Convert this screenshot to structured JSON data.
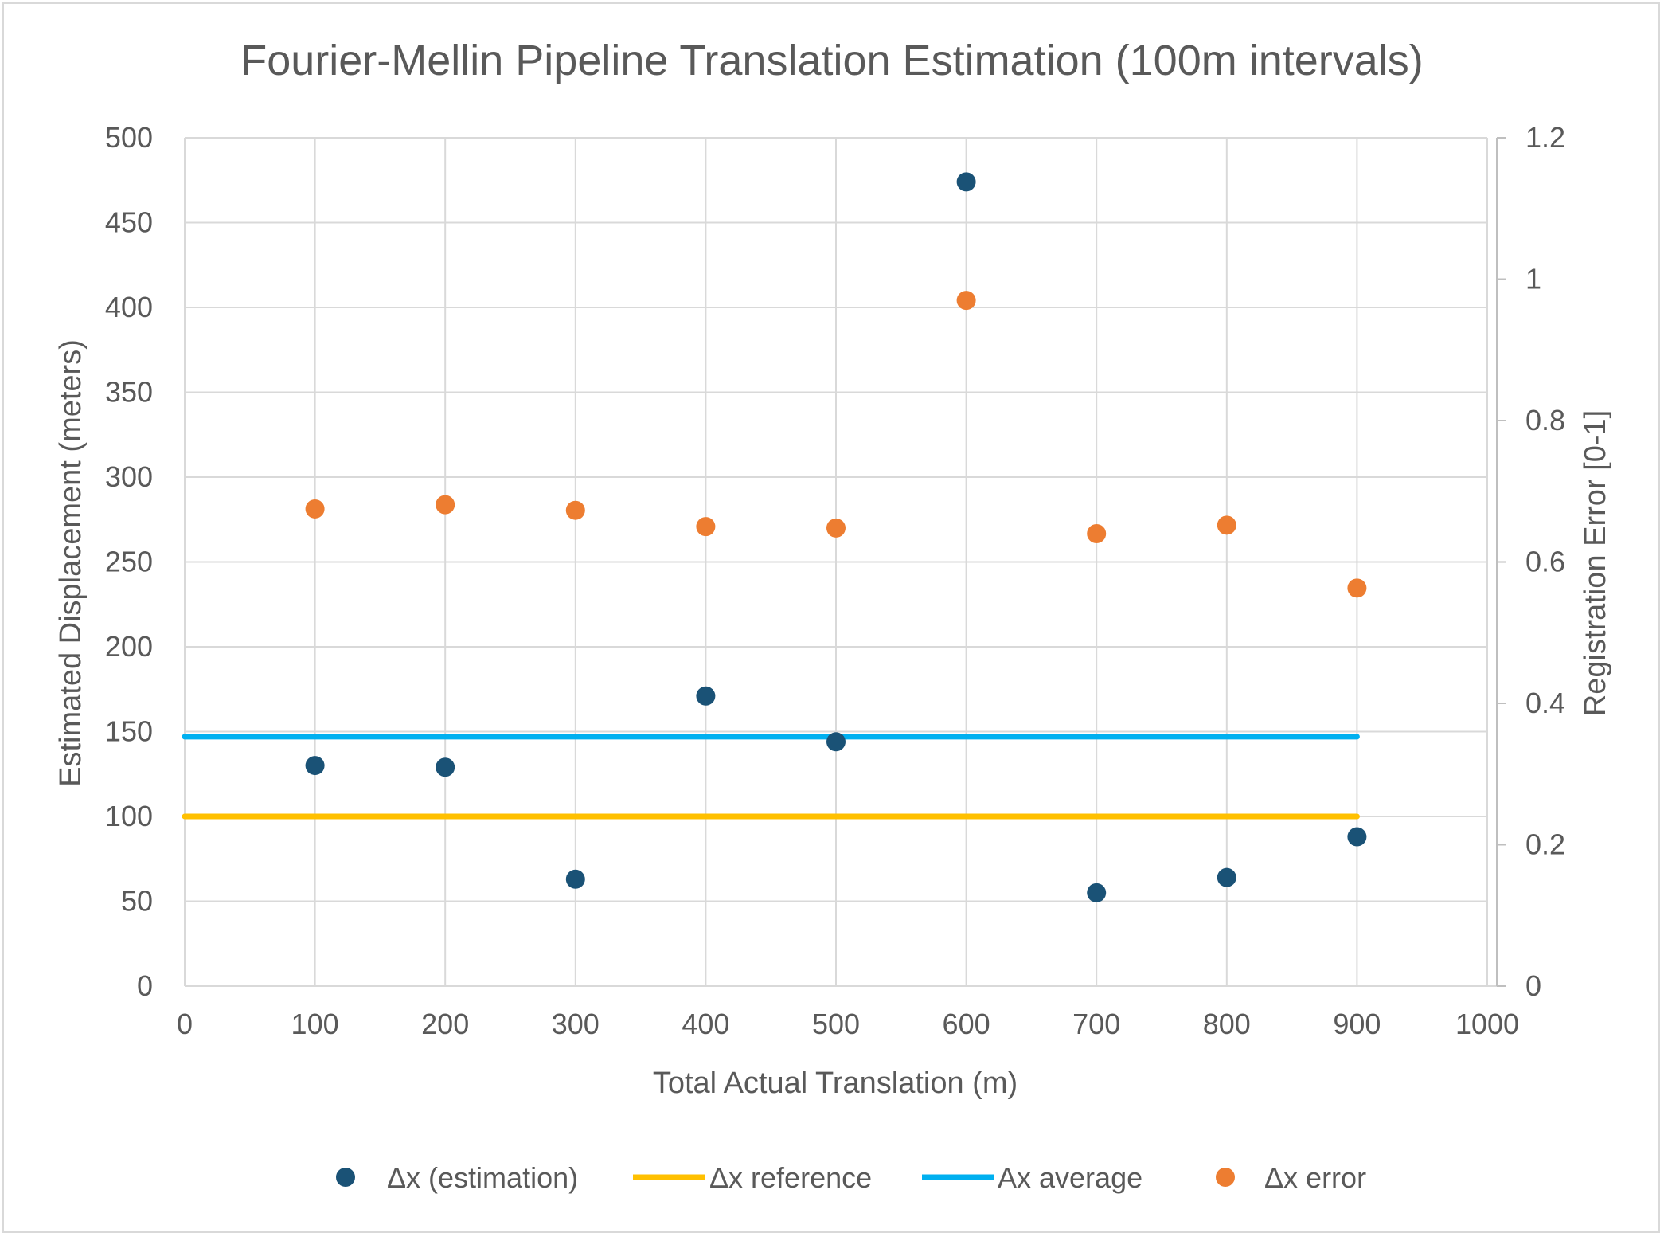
{
  "chart_data": {
    "type": "scatter",
    "title": "Fourier-Mellin Pipeline Translation Estimation (100m intervals)",
    "xlabel": "Total Actual Translation (m)",
    "ylabel": "Estimated Displacement (meters)",
    "y2label": "Registration Error [0-1]",
    "xlim": [
      0,
      1000
    ],
    "ylim": [
      0,
      500
    ],
    "y2lim": [
      0,
      1.2
    ],
    "x_ticks": [
      "0",
      "100",
      "200",
      "300",
      "400",
      "500",
      "600",
      "700",
      "800",
      "900",
      "1000"
    ],
    "y_ticks": [
      "0",
      "50",
      "100",
      "150",
      "200",
      "250",
      "300",
      "350",
      "400",
      "450",
      "500"
    ],
    "y2_ticks": [
      "0",
      "0.2",
      "0.4",
      "0.6",
      "0.8",
      "1",
      "1.2"
    ],
    "grid": true,
    "legend_position": "bottom",
    "series": [
      {
        "name": "Δx (estimation)",
        "kind": "scatter",
        "axis": "left",
        "color": "#1a5276",
        "x": [
          100,
          200,
          300,
          400,
          500,
          600,
          700,
          800,
          900
        ],
        "y": [
          130,
          129,
          63,
          171,
          144,
          474,
          55,
          64,
          88
        ]
      },
      {
        "name": "Δx reference",
        "kind": "line",
        "axis": "left",
        "color": "#ffc000",
        "x": [
          0,
          900
        ],
        "y": [
          100,
          100
        ]
      },
      {
        "name": "Ax average",
        "kind": "line",
        "axis": "left",
        "color": "#00b0f0",
        "x": [
          0,
          900
        ],
        "y": [
          147,
          147
        ]
      },
      {
        "name": "Δx error",
        "kind": "scatter",
        "axis": "right",
        "color": "#ed7d31",
        "x": [
          100,
          200,
          300,
          400,
          500,
          600,
          700,
          800,
          900
        ],
        "y": [
          0.675,
          0.681,
          0.673,
          0.65,
          0.648,
          0.97,
          0.64,
          0.652,
          0.563
        ]
      }
    ]
  }
}
